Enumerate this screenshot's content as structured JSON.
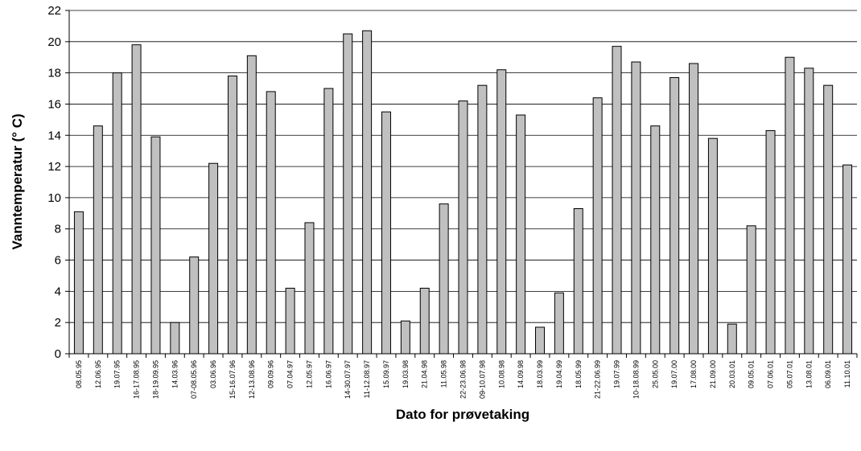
{
  "chart_data": {
    "type": "bar",
    "title": "",
    "xlabel": "Dato for prøvetaking",
    "ylabel": "Vanntemperatur (° C)",
    "ylim": [
      0,
      22
    ],
    "ytick_step": 2,
    "grid": true,
    "legend": "none",
    "colors": {
      "bar_fill": "#c0c0c0",
      "bar_stroke": "#000000",
      "grid": "#000000"
    },
    "categories": [
      "08.05.95",
      "12.06.95",
      "19.07.95",
      "16-17.08.95",
      "18-19.09.95",
      "14.03.96",
      "07-08.05.96",
      "03.06.96",
      "15-16.07.96",
      "12-13.08.96",
      "09.09.96",
      "07.04.97",
      "12.05.97",
      "16.06.97",
      "14-30.07.97",
      "11-12.08.97",
      "15.09.97",
      "19.03.98",
      "21.04.98",
      "11.05.98",
      "22-23.06.98",
      "09-10.07.98",
      "10.08.98",
      "14.09.98",
      "18.03.99",
      "19.04.99",
      "18.05.99",
      "21-22.06.99",
      "19.07.99",
      "10-18.08.99",
      "25.05.00",
      "19.07.00",
      "17.08.00",
      "21.09.00",
      "20.03.01",
      "09.05.01",
      "07.06.01",
      "05.07.01",
      "13.08.01",
      "06.09.01",
      "11.10.01"
    ],
    "values": [
      9.1,
      14.6,
      18.0,
      19.8,
      13.9,
      2.0,
      6.2,
      12.2,
      17.8,
      19.1,
      16.8,
      4.2,
      8.4,
      17.0,
      20.5,
      20.7,
      15.5,
      2.1,
      4.2,
      9.6,
      16.2,
      17.2,
      18.2,
      15.3,
      1.7,
      3.9,
      9.3,
      16.4,
      19.7,
      18.7,
      14.6,
      17.7,
      18.6,
      13.8,
      1.9,
      8.2,
      14.3,
      19.0,
      18.3,
      17.2,
      12.1
    ]
  }
}
